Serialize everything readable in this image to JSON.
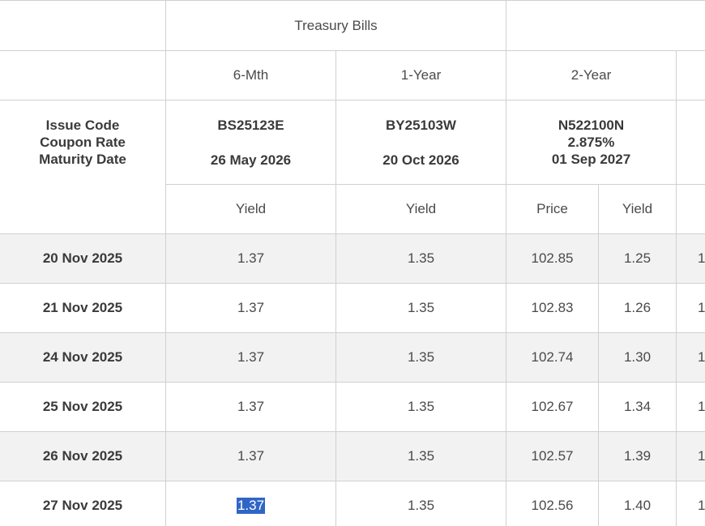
{
  "header": {
    "group_label": "Treasury Bills",
    "tenors": [
      "6-Mth",
      "1-Year",
      "2-Year"
    ],
    "row_labels": [
      "Issue Code",
      "Coupon Rate",
      "Maturity Date"
    ],
    "securities": [
      {
        "issue_code": "BS25123E",
        "coupon_rate": "",
        "maturity": "26 May 2026"
      },
      {
        "issue_code": "BY25103W",
        "coupon_rate": "",
        "maturity": "20 Oct 2026"
      },
      {
        "issue_code": "N522100N",
        "coupon_rate": "2.875%",
        "maturity": "01 Sep 2027"
      }
    ],
    "measures": {
      "yield": "Yield",
      "price": "Price"
    }
  },
  "rows": [
    {
      "date": "20 Nov 2025",
      "bs_yield": "1.37",
      "by_yield": "1.35",
      "n_price": "102.85",
      "n_yield": "1.25",
      "next": "1"
    },
    {
      "date": "21 Nov 2025",
      "bs_yield": "1.37",
      "by_yield": "1.35",
      "n_price": "102.83",
      "n_yield": "1.26",
      "next": "1"
    },
    {
      "date": "24 Nov 2025",
      "bs_yield": "1.37",
      "by_yield": "1.35",
      "n_price": "102.74",
      "n_yield": "1.30",
      "next": "1"
    },
    {
      "date": "25 Nov 2025",
      "bs_yield": "1.37",
      "by_yield": "1.35",
      "n_price": "102.67",
      "n_yield": "1.34",
      "next": "1"
    },
    {
      "date": "26 Nov 2025",
      "bs_yield": "1.37",
      "by_yield": "1.35",
      "n_price": "102.57",
      "n_yield": "1.39",
      "next": "1"
    },
    {
      "date": "27 Nov 2025",
      "bs_yield": "1.37",
      "by_yield": "1.35",
      "n_price": "102.56",
      "n_yield": "1.40",
      "next": "1"
    }
  ],
  "selection": {
    "row": 5,
    "column": "bs_yield",
    "color": "#2f66c6"
  },
  "colors": {
    "row_shade": "#f2f2f2",
    "grid": "#d0d0d0"
  }
}
